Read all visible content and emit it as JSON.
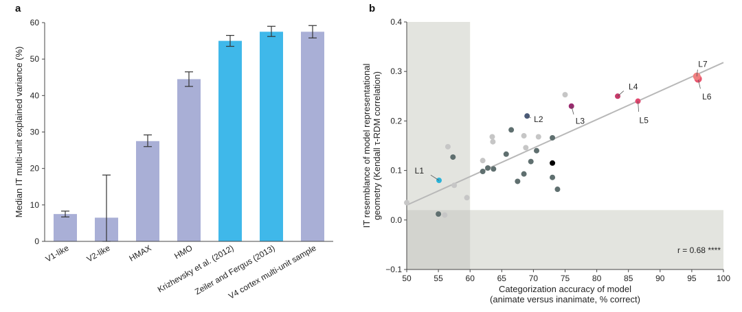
{
  "chart_data": [
    {
      "panel": "a",
      "type": "bar",
      "title": "",
      "xlabel": "",
      "ylabel": "Median IT multi-unit explained variance (%)",
      "ylim": [
        0,
        60
      ],
      "yticks": [
        "0",
        "10",
        "20",
        "30",
        "40",
        "50",
        "60"
      ],
      "categories": [
        "V1-like",
        "V2-like",
        "HMAX",
        "HMO",
        "Krizhevsky et al. (2012)",
        "Zeiler and Fergus (2013)",
        "V4 cortex multi-unit sample"
      ],
      "values": [
        7.5,
        6.5,
        27.5,
        44.5,
        55,
        57.5,
        57.5
      ],
      "err_low": [
        6.7,
        0,
        26.0,
        42.5,
        53.5,
        56.2,
        55.8
      ],
      "err_high": [
        8.3,
        18.2,
        29.2,
        46.5,
        56.5,
        59.0,
        59.2
      ],
      "colors": [
        "#a9afd6",
        "#a9afd6",
        "#a9afd6",
        "#a9afd6",
        "#3fb8ea",
        "#3fb8ea",
        "#a9afd6"
      ]
    },
    {
      "panel": "b",
      "type": "scatter",
      "title": "",
      "xlabel": "Categorization accuracy of model",
      "xlabel2": "(animate versus inanimate, % correct)",
      "ylabel": "IT resemblance of model representational",
      "ylabel2": "geometry (Kendall τ-RDM correlation)",
      "xlim": [
        50,
        100
      ],
      "ylim": [
        -0.1,
        0.4
      ],
      "xticks": [
        "50",
        "55",
        "60",
        "65",
        "70",
        "75",
        "80",
        "85",
        "90",
        "95",
        "100"
      ],
      "yticks": [
        "−0.1",
        "0.0",
        "0.1",
        "0.2",
        "0.3",
        "0.4"
      ],
      "shade_x_max": 60,
      "shade_y_max": 0.02,
      "fit_line": [
        [
          50,
          0.03
        ],
        [
          100,
          0.318
        ]
      ],
      "annotation": "r = 0.68 ****",
      "points": [
        {
          "x": 55.1,
          "y": 0.08,
          "color": "#2bb3d9",
          "label": "L1"
        },
        {
          "x": 69.0,
          "y": 0.21,
          "color": "#4a5a78",
          "label": "L2"
        },
        {
          "x": 76.0,
          "y": 0.23,
          "color": "#9a2a6e",
          "label": "L3"
        },
        {
          "x": 83.3,
          "y": 0.25,
          "color": "#c83a6a",
          "label": "L4"
        },
        {
          "x": 86.5,
          "y": 0.24,
          "color": "#e0476e",
          "label": "L5"
        },
        {
          "x": 96.0,
          "y": 0.285,
          "color": "#e8556e",
          "label": "L6"
        },
        {
          "x": 95.8,
          "y": 0.29,
          "color": "#f08080",
          "label": "L7"
        },
        {
          "x": 73.0,
          "y": 0.115,
          "color": "#000000",
          "label": ""
        },
        {
          "x": 55.0,
          "y": 0.012,
          "color": "#5f6f6f",
          "label": ""
        },
        {
          "x": 57.3,
          "y": 0.127,
          "color": "#5f6f6f",
          "label": ""
        },
        {
          "x": 62.0,
          "y": 0.098,
          "color": "#5f6f6f",
          "label": ""
        },
        {
          "x": 62.8,
          "y": 0.105,
          "color": "#5f6f6f",
          "label": ""
        },
        {
          "x": 63.7,
          "y": 0.103,
          "color": "#5f6f6f",
          "label": ""
        },
        {
          "x": 65.7,
          "y": 0.133,
          "color": "#5f6f6f",
          "label": ""
        },
        {
          "x": 66.5,
          "y": 0.182,
          "color": "#5f6f6f",
          "label": ""
        },
        {
          "x": 67.5,
          "y": 0.078,
          "color": "#5f6f6f",
          "label": ""
        },
        {
          "x": 68.5,
          "y": 0.093,
          "color": "#5f6f6f",
          "label": ""
        },
        {
          "x": 69.6,
          "y": 0.118,
          "color": "#5f6f6f",
          "label": ""
        },
        {
          "x": 70.5,
          "y": 0.14,
          "color": "#5f6f6f",
          "label": ""
        },
        {
          "x": 73.0,
          "y": 0.166,
          "color": "#5f6f6f",
          "label": ""
        },
        {
          "x": 73.0,
          "y": 0.086,
          "color": "#5f6f6f",
          "label": ""
        },
        {
          "x": 73.8,
          "y": 0.062,
          "color": "#5f6f6f",
          "label": ""
        },
        {
          "x": 50.0,
          "y": 0.035,
          "color": "#c6c6c6",
          "label": ""
        },
        {
          "x": 56.0,
          "y": 0.01,
          "color": "#c6c6c6",
          "label": ""
        },
        {
          "x": 56.5,
          "y": 0.148,
          "color": "#c6c6c6",
          "label": ""
        },
        {
          "x": 57.5,
          "y": 0.07,
          "color": "#c6c6c6",
          "label": ""
        },
        {
          "x": 59.5,
          "y": 0.045,
          "color": "#c6c6c6",
          "label": ""
        },
        {
          "x": 62.0,
          "y": 0.12,
          "color": "#c6c6c6",
          "label": ""
        },
        {
          "x": 63.5,
          "y": 0.168,
          "color": "#c6c6c6",
          "label": ""
        },
        {
          "x": 63.6,
          "y": 0.158,
          "color": "#c6c6c6",
          "label": ""
        },
        {
          "x": 68.5,
          "y": 0.17,
          "color": "#c6c6c6",
          "label": ""
        },
        {
          "x": 68.8,
          "y": 0.146,
          "color": "#c6c6c6",
          "label": ""
        },
        {
          "x": 70.8,
          "y": 0.168,
          "color": "#c6c6c6",
          "label": ""
        },
        {
          "x": 75.0,
          "y": 0.253,
          "color": "#c6c6c6",
          "label": ""
        }
      ]
    }
  ]
}
